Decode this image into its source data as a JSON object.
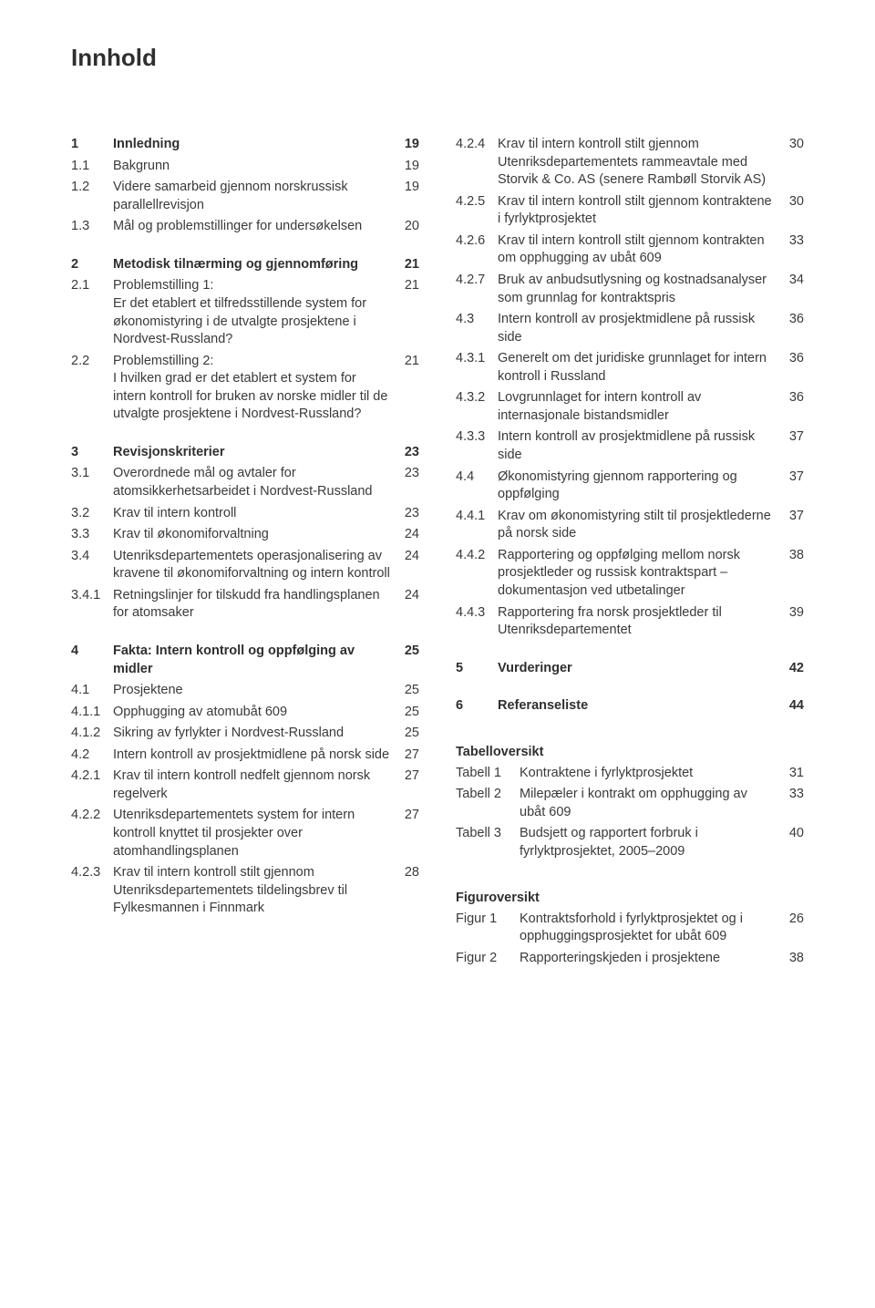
{
  "page_title": "Innhold",
  "left_column": [
    {
      "type": "bold",
      "num": "1",
      "txt": "Innledning",
      "pg": "19"
    },
    {
      "num": "1.1",
      "txt": "Bakgrunn",
      "pg": "19"
    },
    {
      "num": "1.2",
      "txt": "Videre samarbeid gjennom norsk­russisk parallellrevisjon",
      "pg": "19"
    },
    {
      "num": "1.3",
      "txt": "Mål og problemstillinger for undersøkelsen",
      "pg": "20"
    },
    {
      "type": "gap"
    },
    {
      "type": "bold",
      "num": "2",
      "txt": "Metodisk tilnærming og gjennomføring",
      "pg": "21"
    },
    {
      "num": "2.1",
      "txt": "Problemstilling 1:\nEr det etablert et tilfredsstillende system for økonomistyring i de utvalgte prosjektene i Nordvest-Russland?",
      "pg": "21"
    },
    {
      "num": "2.2",
      "txt": "Problemstilling 2:\nI hvilken grad er det etablert et system for intern kontroll for bruken av norske midler til de utvalgte prosjektene i Nordvest-Russland?",
      "pg": "21"
    },
    {
      "type": "gap"
    },
    {
      "type": "bold",
      "num": "3",
      "txt": "Revisjonskriterier",
      "pg": "23"
    },
    {
      "num": "3.1",
      "txt": "Overordnede mål og avtaler for atomsikkerhetsarbeidet i Nordvest-Russland",
      "pg": "23"
    },
    {
      "num": "3.2",
      "txt": "Krav til intern kontroll",
      "pg": "23"
    },
    {
      "num": "3.3",
      "txt": "Krav til økonomiforvaltning",
      "pg": "24"
    },
    {
      "num": "3.4",
      "txt": "Utenriksdepartementets operasjonalisering av kravene til økonomiforvaltning og intern kontroll",
      "pg": "24"
    },
    {
      "num": "3.4.1",
      "txt": "Retningslinjer for tilskudd fra handlingsplanen for atomsaker",
      "pg": "24"
    },
    {
      "type": "gap"
    },
    {
      "type": "bold",
      "num": "4",
      "txt": "Fakta: Intern kontroll og oppfølging av midler",
      "pg": "25"
    },
    {
      "num": "4.1",
      "txt": "Prosjektene",
      "pg": "25"
    },
    {
      "num": "4.1.1",
      "txt": "Opphugging av atomubåt 609",
      "pg": "25"
    },
    {
      "num": "4.1.2",
      "txt": "Sikring av fyrlykter i Nordvest-Russland",
      "pg": "25"
    },
    {
      "num": "4.2",
      "txt": "Intern kontroll av prosjektmidlene på norsk side",
      "pg": "27"
    },
    {
      "num": "4.2.1",
      "txt": "Krav til intern kontroll nedfelt gjennom norsk regelverk",
      "pg": "27"
    },
    {
      "num": "4.2.2",
      "txt": "Utenriksdepartementets system for intern kontroll knyttet til prosjekter over atomhandlingsplanen",
      "pg": "27"
    },
    {
      "num": "4.2.3",
      "txt": "Krav til intern kontroll stilt gjennom Utenriksdepartementets tildelingsbrev til Fylkesmannen i Finnmark",
      "pg": "28"
    }
  ],
  "right_column": [
    {
      "num": "4.2.4",
      "txt": "Krav til intern kontroll stilt gjennom Utenriksdepartementets rammeavtale med Storvik & Co. AS (senere Rambøll Storvik AS)",
      "pg": "30"
    },
    {
      "num": "4.2.5",
      "txt": "Krav til intern kontroll stilt gjennom kontraktene i fyrlyktprosjektet",
      "pg": "30"
    },
    {
      "num": "4.2.6",
      "txt": "Krav til intern kontroll stilt gjennom kontrakten om opphugging av ubåt 609",
      "pg": "33"
    },
    {
      "num": "4.2.7",
      "txt": "Bruk av anbudsutlysning og kostnads­analyser som grunnlag for kontraktspris",
      "pg": "34"
    },
    {
      "num": "4.3",
      "txt": "Intern kontroll av prosjektmidlene på russisk side",
      "pg": "36"
    },
    {
      "num": "4.3.1",
      "txt": "Generelt om det juridiske grunnlaget for intern kontroll i Russland",
      "pg": "36"
    },
    {
      "num": "4.3.2",
      "txt": "Lovgrunnlaget for intern kontroll av internasjonale bistandsmidler",
      "pg": "36"
    },
    {
      "num": "4.3.3",
      "txt": "Intern kontroll av prosjektmidlene på russisk side",
      "pg": "37"
    },
    {
      "num": "4.4",
      "txt": "Økonomistyring gjennom rapportering og oppfølging",
      "pg": "37"
    },
    {
      "num": "4.4.1",
      "txt": "Krav om økonomistyring stilt til prosjektlederne på norsk side",
      "pg": "37"
    },
    {
      "num": "4.4.2",
      "txt": "Rapportering og oppfølging mellom norsk prosjektleder og russisk kontraktspart – dokumentasjon ved utbetalinger",
      "pg": "38"
    },
    {
      "num": "4.4.3",
      "txt": "Rapportering fra norsk prosjektleder til Utenriksdepartementet",
      "pg": "39"
    },
    {
      "type": "gap"
    },
    {
      "type": "bold",
      "num": "5",
      "txt": "Vurderinger",
      "pg": "42"
    },
    {
      "type": "gap"
    },
    {
      "type": "bold",
      "num": "6",
      "txt": "Referanseliste",
      "pg": "44"
    }
  ],
  "tabell_heading": "Tabelloversikt",
  "tabeller": [
    {
      "label": "Tabell 1",
      "txt": "Kontraktene i fyrlyktprosjektet",
      "pg": "31"
    },
    {
      "label": "Tabell 2",
      "txt": "Milepæler i kontrakt om opphugging av ubåt 609",
      "pg": "33"
    },
    {
      "label": "Tabell 3",
      "txt": "Budsjett og rapportert forbruk i fyrlyktprosjektet, 2005–2009",
      "pg": "40"
    }
  ],
  "figur_heading": "Figuroversikt",
  "figurer": [
    {
      "label": "Figur 1",
      "txt": "Kontraktsforhold i fyrlykt­prosjektet og i opphuggings­prosjektet for ubåt 609",
      "pg": "26"
    },
    {
      "label": "Figur 2",
      "txt": "Rapporteringskjeden i prosjektene",
      "pg": "38"
    }
  ]
}
